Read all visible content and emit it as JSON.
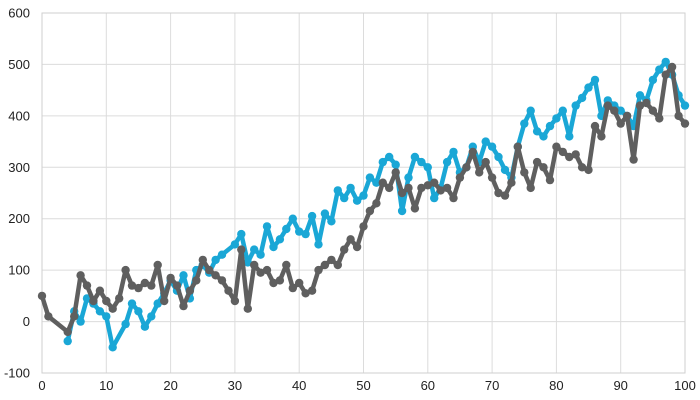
{
  "chart_data": {
    "type": "line",
    "title": "",
    "xlabel": "",
    "ylabel": "",
    "xlim": [
      0,
      100
    ],
    "ylim": [
      -100,
      600
    ],
    "x_ticks": [
      0,
      10,
      20,
      30,
      40,
      50,
      60,
      70,
      80,
      90,
      100
    ],
    "y_ticks": [
      -100,
      0,
      100,
      200,
      300,
      400,
      500,
      600
    ],
    "grid": true,
    "legend": "none",
    "series": [
      {
        "color": "#1aa7d6",
        "points": [
          [
            4,
            -38
          ],
          [
            5,
            20
          ],
          [
            6,
            0
          ],
          [
            7,
            45
          ],
          [
            8,
            35
          ],
          [
            9,
            20
          ],
          [
            10,
            10
          ],
          [
            11,
            -50
          ],
          [
            13,
            -5
          ],
          [
            14,
            35
          ],
          [
            15,
            20
          ],
          [
            16,
            -10
          ],
          [
            17,
            10
          ],
          [
            18,
            35
          ],
          [
            19,
            55
          ],
          [
            20,
            80
          ],
          [
            21,
            60
          ],
          [
            22,
            90
          ],
          [
            23,
            45
          ],
          [
            24,
            100
          ],
          [
            25,
            110
          ],
          [
            26,
            95
          ],
          [
            27,
            120
          ],
          [
            28,
            130
          ],
          [
            30,
            150
          ],
          [
            31,
            170
          ],
          [
            32,
            115
          ],
          [
            33,
            140
          ],
          [
            34,
            130
          ],
          [
            35,
            185
          ],
          [
            36,
            145
          ],
          [
            37,
            160
          ],
          [
            38,
            180
          ],
          [
            39,
            200
          ],
          [
            40,
            175
          ],
          [
            41,
            170
          ],
          [
            42,
            205
          ],
          [
            43,
            150
          ],
          [
            44,
            210
          ],
          [
            45,
            195
          ],
          [
            46,
            255
          ],
          [
            47,
            240
          ],
          [
            48,
            260
          ],
          [
            49,
            235
          ],
          [
            50,
            245
          ],
          [
            51,
            280
          ],
          [
            52,
            270
          ],
          [
            53,
            310
          ],
          [
            54,
            320
          ],
          [
            55,
            305
          ],
          [
            56,
            215
          ],
          [
            57,
            280
          ],
          [
            58,
            320
          ],
          [
            59,
            310
          ],
          [
            60,
            300
          ],
          [
            61,
            240
          ],
          [
            62,
            260
          ],
          [
            63,
            310
          ],
          [
            64,
            330
          ],
          [
            65,
            290
          ],
          [
            66,
            300
          ],
          [
            67,
            340
          ],
          [
            68,
            310
          ],
          [
            69,
            350
          ],
          [
            70,
            340
          ],
          [
            71,
            320
          ],
          [
            72,
            295
          ],
          [
            73,
            280
          ],
          [
            74,
            340
          ],
          [
            75,
            385
          ],
          [
            76,
            410
          ],
          [
            77,
            370
          ],
          [
            78,
            360
          ],
          [
            79,
            380
          ],
          [
            80,
            395
          ],
          [
            81,
            410
          ],
          [
            82,
            360
          ],
          [
            83,
            420
          ],
          [
            84,
            435
          ],
          [
            85,
            455
          ],
          [
            86,
            470
          ],
          [
            87,
            400
          ],
          [
            88,
            430
          ],
          [
            89,
            420
          ],
          [
            90,
            410
          ],
          [
            91,
            400
          ],
          [
            92,
            380
          ],
          [
            93,
            440
          ],
          [
            94,
            430
          ],
          [
            95,
            470
          ],
          [
            96,
            490
          ],
          [
            97,
            505
          ],
          [
            98,
            480
          ],
          [
            99,
            440
          ],
          [
            100,
            420
          ]
        ]
      },
      {
        "color": "#5f5f5f",
        "points": [
          [
            0,
            50
          ],
          [
            1,
            10
          ],
          [
            4,
            -20
          ],
          [
            5,
            10
          ],
          [
            6,
            90
          ],
          [
            7,
            70
          ],
          [
            8,
            40
          ],
          [
            9,
            60
          ],
          [
            10,
            40
          ],
          [
            11,
            25
          ],
          [
            12,
            45
          ],
          [
            13,
            100
          ],
          [
            14,
            70
          ],
          [
            15,
            65
          ],
          [
            16,
            75
          ],
          [
            17,
            70
          ],
          [
            18,
            110
          ],
          [
            19,
            40
          ],
          [
            20,
            85
          ],
          [
            21,
            70
          ],
          [
            22,
            30
          ],
          [
            23,
            60
          ],
          [
            24,
            80
          ],
          [
            25,
            120
          ],
          [
            26,
            100
          ],
          [
            27,
            90
          ],
          [
            28,
            80
          ],
          [
            29,
            60
          ],
          [
            30,
            40
          ],
          [
            31,
            140
          ],
          [
            32,
            25
          ],
          [
            33,
            110
          ],
          [
            34,
            95
          ],
          [
            35,
            100
          ],
          [
            36,
            75
          ],
          [
            37,
            80
          ],
          [
            38,
            110
          ],
          [
            39,
            65
          ],
          [
            40,
            75
          ],
          [
            41,
            55
          ],
          [
            42,
            60
          ],
          [
            43,
            100
          ],
          [
            44,
            110
          ],
          [
            45,
            120
          ],
          [
            46,
            110
          ],
          [
            47,
            140
          ],
          [
            48,
            160
          ],
          [
            49,
            145
          ],
          [
            50,
            185
          ],
          [
            51,
            215
          ],
          [
            52,
            230
          ],
          [
            53,
            270
          ],
          [
            54,
            260
          ],
          [
            55,
            290
          ],
          [
            56,
            250
          ],
          [
            57,
            260
          ],
          [
            58,
            220
          ],
          [
            59,
            260
          ],
          [
            60,
            265
          ],
          [
            61,
            270
          ],
          [
            62,
            255
          ],
          [
            63,
            260
          ],
          [
            64,
            240
          ],
          [
            65,
            280
          ],
          [
            66,
            300
          ],
          [
            67,
            330
          ],
          [
            68,
            290
          ],
          [
            69,
            310
          ],
          [
            70,
            280
          ],
          [
            71,
            250
          ],
          [
            72,
            245
          ],
          [
            73,
            270
          ],
          [
            74,
            340
          ],
          [
            75,
            290
          ],
          [
            76,
            260
          ],
          [
            77,
            310
          ],
          [
            78,
            300
          ],
          [
            79,
            275
          ],
          [
            80,
            340
          ],
          [
            81,
            330
          ],
          [
            82,
            320
          ],
          [
            83,
            325
          ],
          [
            84,
            300
          ],
          [
            85,
            295
          ],
          [
            86,
            380
          ],
          [
            87,
            360
          ],
          [
            88,
            420
          ],
          [
            89,
            410
          ],
          [
            90,
            385
          ],
          [
            91,
            400
          ],
          [
            92,
            315
          ],
          [
            93,
            420
          ],
          [
            94,
            425
          ],
          [
            95,
            410
          ],
          [
            96,
            395
          ],
          [
            97,
            480
          ],
          [
            98,
            495
          ],
          [
            99,
            400
          ],
          [
            100,
            385
          ]
        ]
      }
    ]
  }
}
